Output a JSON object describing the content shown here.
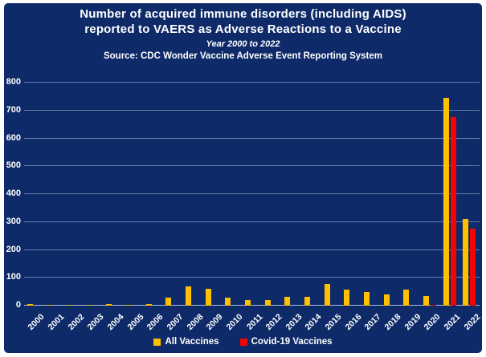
{
  "title": {
    "line1": "Number of acquired immune disorders (including AIDS)",
    "line2": "reported to VAERS as Adverse Reactions to a Vaccine",
    "line3": "Year 2000 to 2022",
    "line4": "Source: CDC Wonder Vaccine Adverse Event Reporting System"
  },
  "colors": {
    "panel_background": "#0e2a69",
    "all_vaccines": "#ffc000",
    "covid_vaccines": "#f40505",
    "gridline": "#b2c1dc",
    "text": "#ffffff"
  },
  "chart_data": {
    "type": "bar",
    "title": "Number of acquired immune disorders (including AIDS) reported to VAERS as Adverse Reactions to a Vaccine",
    "subtitle": "Year 2000 to 2022",
    "source": "Source: CDC Wonder Vaccine Adverse Event Reporting System",
    "categories": [
      "2000",
      "2001",
      "2002",
      "2003",
      "2004",
      "2005",
      "2006",
      "2007",
      "2008",
      "2009",
      "2010",
      "2011",
      "2012",
      "2013",
      "2014",
      "2015",
      "2016",
      "2017",
      "2018",
      "2019",
      "2020",
      "2021",
      "2022"
    ],
    "series": [
      {
        "name": "All Vaccines",
        "color": "#ffc000",
        "values": [
          6,
          3,
          3,
          3,
          5,
          4,
          6,
          30,
          70,
          60,
          28,
          21,
          19,
          33,
          32,
          78,
          57,
          50,
          40,
          59,
          35,
          745,
          310
        ]
      },
      {
        "name": "Covid-19 Vaccines",
        "color": "#f40505",
        "values": [
          0,
          0,
          0,
          0,
          0,
          0,
          0,
          0,
          0,
          0,
          0,
          0,
          0,
          0,
          0,
          0,
          0,
          0,
          0,
          0,
          4,
          675,
          275
        ]
      }
    ],
    "xlabel": "",
    "ylabel": "",
    "ylim": [
      0,
      800
    ],
    "yticks": [
      0,
      100,
      200,
      300,
      400,
      500,
      600,
      700,
      800
    ],
    "grid": true,
    "legend_position": "bottom"
  },
  "legend": {
    "items": [
      {
        "label": "All Vaccines",
        "color": "#ffc000"
      },
      {
        "label": "Covid-19 Vaccines",
        "color": "#f40505"
      }
    ]
  }
}
